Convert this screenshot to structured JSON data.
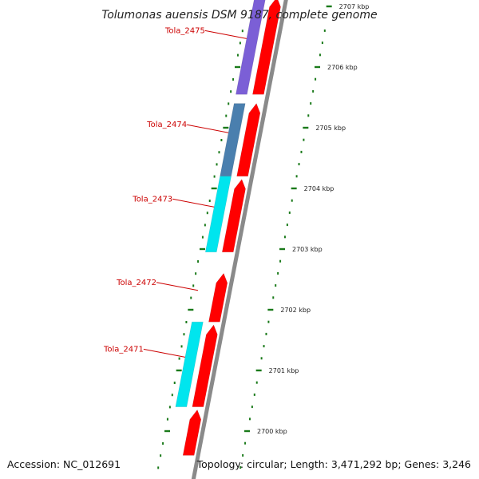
{
  "title": "Tolumonas auensis DSM 9187, complete genome",
  "footer": {
    "accession": "Accession: NC_012691",
    "topology": "Topology: circular; Length: 3,471,292 bp; Genes: 3,246"
  },
  "colors": {
    "backbone": "#8a8a8a",
    "cds": "#ff0000",
    "gene_purple": "#7b5fd6",
    "gene_steel": "#4a7fae",
    "gene_cyan": "#00e5ee",
    "label": "#cc0000",
    "tick": "#1a7a1a"
  },
  "ticks": [
    {
      "kbp": 2700,
      "label": "2700 kbp"
    },
    {
      "kbp": 2701,
      "label": "2701 kbp"
    },
    {
      "kbp": 2702,
      "label": "2702 kbp"
    },
    {
      "kbp": 2703,
      "label": "2703 kbp"
    },
    {
      "kbp": 2704,
      "label": "2704 kbp"
    },
    {
      "kbp": 2705,
      "label": "2705 kbp"
    },
    {
      "kbp": 2706,
      "label": "2706 kbp"
    },
    {
      "kbp": 2707,
      "label": "2707 kbp"
    }
  ],
  "genes": [
    {
      "locus": "Tola_2475",
      "start_kbp": 2705.55,
      "end_kbp": 2707.15,
      "color": "gene_purple"
    },
    {
      "locus": "Tola_2474",
      "start_kbp": 2704.2,
      "end_kbp": 2705.4,
      "color": "gene_steel"
    },
    {
      "locus": "Tola_2473",
      "start_kbp": 2702.95,
      "end_kbp": 2704.2,
      "color": "gene_cyan"
    },
    {
      "locus": "Tola_2472",
      "start_kbp": 2701.8,
      "end_kbp": 2702.6,
      "color": "none"
    },
    {
      "locus": "Tola_2471",
      "start_kbp": 2700.4,
      "end_kbp": 2701.8,
      "color": "gene_cyan"
    }
  ],
  "cds": [
    {
      "start_kbp": 2705.55,
      "end_kbp": 2707.15
    },
    {
      "start_kbp": 2704.2,
      "end_kbp": 2705.4
    },
    {
      "start_kbp": 2702.95,
      "end_kbp": 2704.15
    },
    {
      "start_kbp": 2701.8,
      "end_kbp": 2702.6
    },
    {
      "start_kbp": 2700.4,
      "end_kbp": 2701.75
    },
    {
      "start_kbp": 2699.6,
      "end_kbp": 2700.35
    }
  ]
}
